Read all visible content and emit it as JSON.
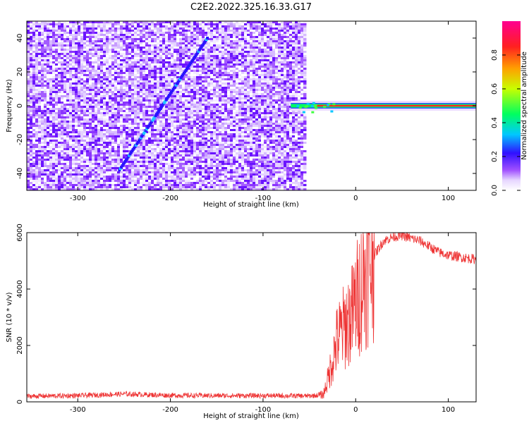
{
  "title": "C2E2.2022.325.16.33.G17",
  "chart_data": [
    {
      "type": "heatmap",
      "xlabel": "Height of straight line (km)",
      "ylabel": "Frequency (Hz)",
      "xlim": [
        -355,
        130
      ],
      "ylim": [
        -50,
        50
      ],
      "xticks": [
        -300,
        -200,
        -100,
        0,
        100
      ],
      "yticks": [
        -40,
        -20,
        0,
        20,
        40
      ],
      "noise_region_x": [
        -355,
        -55
      ],
      "features": [
        {
          "kind": "diagonal-line",
          "from": [
            -255,
            -38
          ],
          "to": [
            -160,
            40
          ]
        },
        {
          "kind": "horizontal-band",
          "y": 0,
          "x_from": -70,
          "x_to": 130
        }
      ],
      "colorbar": {
        "label": "Normalized spectral amplitude",
        "range": [
          0,
          1
        ],
        "ticks": [
          0.0,
          0.2,
          0.4,
          0.6,
          0.8
        ]
      },
      "grid": false
    },
    {
      "type": "line",
      "xlabel": "Height of straight line (km)",
      "ylabel": "SNR (10 * v/v)",
      "xlim": [
        -355,
        130
      ],
      "ylim": [
        0,
        6000
      ],
      "xticks": [
        -300,
        -200,
        -100,
        0,
        100
      ],
      "yticks": [
        0,
        2000,
        4000,
        6000
      ],
      "series_color": "#ee3333",
      "envelope": {
        "x": [
          -355,
          -300,
          -250,
          -200,
          -150,
          -100,
          -50,
          -35,
          -30,
          -25,
          -20,
          -15,
          -10,
          -5,
          0,
          10,
          20,
          30,
          40,
          50,
          60,
          70,
          80,
          90,
          100,
          110,
          120,
          130
        ],
        "y": [
          200,
          220,
          280,
          230,
          220,
          220,
          210,
          250,
          800,
          1500,
          2200,
          2500,
          2800,
          3000,
          3500,
          4500,
          5200,
          5700,
          5850,
          5900,
          5800,
          5700,
          5500,
          5300,
          5200,
          5150,
          5100,
          5050
        ]
      },
      "grid": false
    }
  ]
}
